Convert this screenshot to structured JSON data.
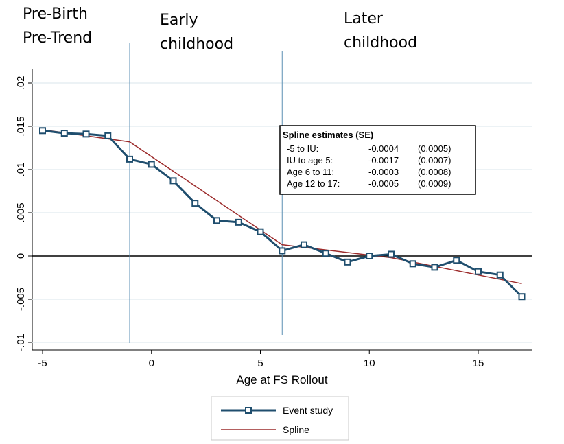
{
  "chart_data": {
    "type": "line",
    "xlabel": "Age at FS Rollout",
    "ylabel": "",
    "xlim": [
      -5,
      17.5
    ],
    "ylim": [
      -0.011,
      0.021
    ],
    "x_ticks": [
      -5,
      0,
      5,
      10,
      15
    ],
    "x_tick_labels": [
      "-5",
      "0",
      "5",
      "10",
      "15"
    ],
    "y_ticks": [
      -0.01,
      -0.005,
      0,
      0.005,
      0.01,
      0.015,
      0.02
    ],
    "y_tick_labels": [
      "-.01",
      "-.005",
      "0",
      ".005",
      ".01",
      ".015",
      ".02"
    ],
    "grid": true,
    "legend_position": "bottom",
    "series": [
      {
        "name": "Event study",
        "color": "#1f4e6e",
        "marker": "hollow-square",
        "x": [
          -5,
          -4,
          -3,
          -2,
          -1,
          0,
          1,
          2,
          3,
          4,
          5,
          6,
          7,
          8,
          9,
          10,
          11,
          12,
          13,
          14,
          15,
          16,
          17
        ],
        "y": [
          0.0145,
          0.0142,
          0.0141,
          0.0139,
          0.0112,
          0.0106,
          0.0087,
          0.0061,
          0.0041,
          0.0039,
          0.0028,
          0.0006,
          0.0013,
          0.0003,
          -0.0007,
          0.0,
          0.0002,
          -0.0009,
          -0.0013,
          -0.0005,
          -0.0018,
          -0.0022,
          -0.0047
        ]
      },
      {
        "name": "Spline",
        "color": "#9c2b2b",
        "x": [
          -5,
          -1,
          6,
          11,
          17
        ],
        "y": [
          0.0146,
          0.0132,
          0.0013,
          -0.0002,
          -0.0032
        ]
      }
    ],
    "vertical_lines": [
      -1,
      6
    ],
    "region_labels": [
      {
        "line1": "Pre-Birth",
        "line2": "Pre-Trend"
      },
      {
        "line1": "Early",
        "line2": "childhood"
      },
      {
        "line1": "Later",
        "line2": "childhood"
      }
    ],
    "estimates_box": {
      "title": "Spline estimates (SE)",
      "rows": [
        {
          "label": "-5 to IU:",
          "estimate": "-0.0004",
          "se": "(0.0005)"
        },
        {
          "label": "IU to age 5:",
          "estimate": "-0.0017",
          "se": "(0.0007)"
        },
        {
          "label": "Age 6 to 11:",
          "estimate": "-0.0003",
          "se": "(0.0008)"
        },
        {
          "label": "Age 12 to 17:",
          "estimate": "-0.0005",
          "se": "(0.0009)"
        }
      ]
    }
  }
}
